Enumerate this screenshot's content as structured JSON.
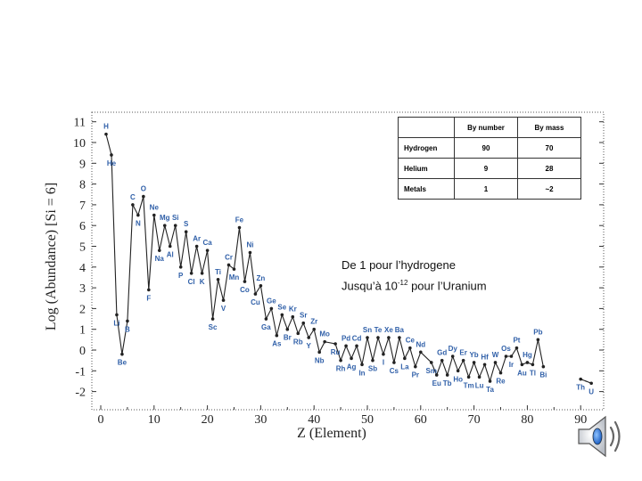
{
  "chart_data": {
    "type": "line",
    "xlabel": "Z (Element)",
    "ylabel": "Log (Abundance) [Si = 6]",
    "xlim": [
      0,
      95
    ],
    "ylim": [
      -2.5,
      11.2
    ],
    "xticks": [
      0,
      10,
      20,
      30,
      40,
      50,
      60,
      70,
      80,
      90
    ],
    "yticks": [
      11,
      10,
      9,
      8,
      7,
      6,
      5,
      4,
      3,
      2,
      1,
      0,
      -1,
      -2
    ],
    "grid": false,
    "points": [
      {
        "z": 1,
        "y": 10.4,
        "label": "H"
      },
      {
        "z": 2,
        "y": 9.4,
        "label": "He"
      },
      {
        "z": 3,
        "y": 1.7,
        "label": "Li"
      },
      {
        "z": 4,
        "y": -0.2,
        "label": "Be"
      },
      {
        "z": 5,
        "y": 1.4,
        "label": "B"
      },
      {
        "z": 6,
        "y": 7.0,
        "label": "C"
      },
      {
        "z": 7,
        "y": 6.5,
        "label": "N"
      },
      {
        "z": 8,
        "y": 7.4,
        "label": "O"
      },
      {
        "z": 9,
        "y": 2.9,
        "label": "F"
      },
      {
        "z": 10,
        "y": 6.5,
        "label": "Ne"
      },
      {
        "z": 11,
        "y": 4.8,
        "label": "Na"
      },
      {
        "z": 12,
        "y": 6.0,
        "label": "Mg"
      },
      {
        "z": 13,
        "y": 5.0,
        "label": "Al"
      },
      {
        "z": 14,
        "y": 6.0,
        "label": "Si"
      },
      {
        "z": 15,
        "y": 4.0,
        "label": "P"
      },
      {
        "z": 16,
        "y": 5.7,
        "label": "S"
      },
      {
        "z": 17,
        "y": 3.7,
        "label": "Cl"
      },
      {
        "z": 18,
        "y": 5.0,
        "label": "Ar"
      },
      {
        "z": 19,
        "y": 3.7,
        "label": "K"
      },
      {
        "z": 20,
        "y": 4.8,
        "label": "Ca"
      },
      {
        "z": 21,
        "y": 1.5,
        "label": "Sc"
      },
      {
        "z": 22,
        "y": 3.4,
        "label": "Ti"
      },
      {
        "z": 23,
        "y": 2.4,
        "label": "V"
      },
      {
        "z": 24,
        "y": 4.1,
        "label": "Cr"
      },
      {
        "z": 25,
        "y": 3.9,
        "label": "Mn"
      },
      {
        "z": 26,
        "y": 5.9,
        "label": "Fe"
      },
      {
        "z": 27,
        "y": 3.3,
        "label": "Co"
      },
      {
        "z": 28,
        "y": 4.7,
        "label": "Ni"
      },
      {
        "z": 29,
        "y": 2.7,
        "label": "Cu"
      },
      {
        "z": 30,
        "y": 3.1,
        "label": "Zn"
      },
      {
        "z": 31,
        "y": 1.5,
        "label": "Ga"
      },
      {
        "z": 32,
        "y": 2.0,
        "label": "Ge"
      },
      {
        "z": 33,
        "y": 0.7,
        "label": "As"
      },
      {
        "z": 34,
        "y": 1.7,
        "label": "Se"
      },
      {
        "z": 35,
        "y": 1.0,
        "label": "Br"
      },
      {
        "z": 36,
        "y": 1.6,
        "label": "Kr"
      },
      {
        "z": 37,
        "y": 0.8,
        "label": "Rb"
      },
      {
        "z": 38,
        "y": 1.3,
        "label": "Sr"
      },
      {
        "z": 39,
        "y": 0.6,
        "label": "Y"
      },
      {
        "z": 40,
        "y": 1.0,
        "label": "Zr"
      },
      {
        "z": 41,
        "y": -0.1,
        "label": "Nb"
      },
      {
        "z": 42,
        "y": 0.4,
        "label": "Mo"
      },
      {
        "z": 44,
        "y": 0.3,
        "label": "Ru"
      },
      {
        "z": 45,
        "y": -0.5,
        "label": "Rh"
      },
      {
        "z": 46,
        "y": 0.2,
        "label": "Pd"
      },
      {
        "z": 47,
        "y": -0.4,
        "label": "Ag"
      },
      {
        "z": 48,
        "y": 0.2,
        "label": "Cd"
      },
      {
        "z": 49,
        "y": -0.7,
        "label": "In"
      },
      {
        "z": 50,
        "y": 0.6,
        "label": "Sn"
      },
      {
        "z": 51,
        "y": -0.5,
        "label": "Sb"
      },
      {
        "z": 52,
        "y": 0.6,
        "label": "Te"
      },
      {
        "z": 53,
        "y": -0.2,
        "label": "I"
      },
      {
        "z": 54,
        "y": 0.6,
        "label": "Xe"
      },
      {
        "z": 55,
        "y": -0.6,
        "label": "Cs"
      },
      {
        "z": 56,
        "y": 0.6,
        "label": "Ba"
      },
      {
        "z": 57,
        "y": -0.4,
        "label": "La"
      },
      {
        "z": 58,
        "y": 0.1,
        "label": "Ce"
      },
      {
        "z": 59,
        "y": -0.8,
        "label": "Pr"
      },
      {
        "z": 60,
        "y": -0.1,
        "label": "Nd"
      },
      {
        "z": 62,
        "y": -0.6,
        "label": "Sm"
      },
      {
        "z": 63,
        "y": -1.2,
        "label": "Eu"
      },
      {
        "z": 64,
        "y": -0.5,
        "label": "Gd"
      },
      {
        "z": 65,
        "y": -1.2,
        "label": "Tb"
      },
      {
        "z": 66,
        "y": -0.3,
        "label": "Dy"
      },
      {
        "z": 67,
        "y": -1.0,
        "label": "Ho"
      },
      {
        "z": 68,
        "y": -0.5,
        "label": "Er"
      },
      {
        "z": 69,
        "y": -1.3,
        "label": "Tm"
      },
      {
        "z": 70,
        "y": -0.6,
        "label": "Yb"
      },
      {
        "z": 71,
        "y": -1.3,
        "label": "Lu"
      },
      {
        "z": 72,
        "y": -0.7,
        "label": "Hf"
      },
      {
        "z": 73,
        "y": -1.5,
        "label": "Ta"
      },
      {
        "z": 74,
        "y": -0.6,
        "label": "W"
      },
      {
        "z": 75,
        "y": -1.1,
        "label": "Re"
      },
      {
        "z": 76,
        "y": -0.3,
        "label": "Os"
      },
      {
        "z": 77,
        "y": -0.3,
        "label": "Ir"
      },
      {
        "z": 78,
        "y": 0.1,
        "label": "Pt"
      },
      {
        "z": 79,
        "y": -0.7,
        "label": "Au"
      },
      {
        "z": 80,
        "y": -0.6,
        "label": "Hg"
      },
      {
        "z": 81,
        "y": -0.7,
        "label": "Tl"
      },
      {
        "z": 82,
        "y": 0.5,
        "label": "Pb"
      },
      {
        "z": 83,
        "y": -0.8,
        "label": "Bi"
      },
      {
        "z": 90,
        "y": -1.4,
        "label": "Th"
      },
      {
        "z": 92,
        "y": -1.6,
        "label": "U"
      }
    ],
    "breaks_after_z": [
      83
    ],
    "color": "#222222",
    "label_color": "#2f5fa8"
  },
  "abundance_table": {
    "headers": [
      "",
      "By number",
      "By mass"
    ],
    "rows": [
      {
        "name": "Hydrogen",
        "by_number": "90",
        "by_mass": "70"
      },
      {
        "name": "Helium",
        "by_number": "9",
        "by_mass": "28"
      },
      {
        "name": "Metals",
        "by_number": "1",
        "by_mass": "~2"
      }
    ]
  },
  "note": {
    "line1": "De 1 pour l’hydrogene",
    "line2_prefix": "Jusqu’à 10",
    "line2_exponent": "-12",
    "line2_suffix": " pour l’Uranium"
  },
  "speaker_icon": "speaker-icon"
}
